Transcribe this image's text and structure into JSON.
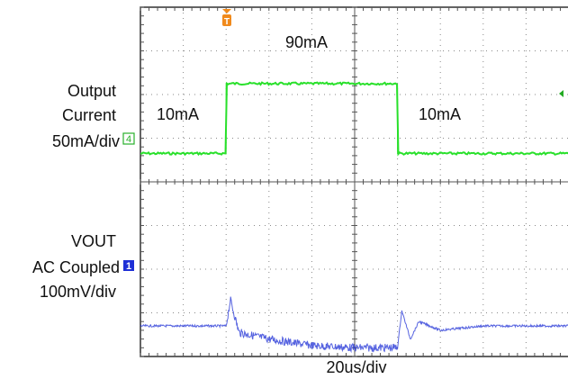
{
  "chart_data": {
    "type": "line",
    "title": "",
    "x_axis": {
      "label": "20us/div",
      "divisions": 10,
      "unit": "us",
      "per_div": 20,
      "xlim": [
        0,
        200
      ]
    },
    "y_axis": {
      "divisions": 8
    },
    "grid": true,
    "trigger_marker": {
      "label": "T",
      "color": "#f08a1c"
    },
    "right_marker_color": "#22aa22",
    "series": [
      {
        "label_lines": [
          "Output",
          "Current",
          "50mA/div"
        ],
        "channel": "4",
        "color": "#29e02b",
        "units": "mA",
        "scale_per_div": 50,
        "x": [
          0,
          40,
          40,
          120,
          120,
          200
        ],
        "y": [
          10,
          10,
          90,
          90,
          10,
          10
        ],
        "annotations": [
          "10mA",
          "90mA",
          "10mA"
        ]
      },
      {
        "label_lines": [
          "VOUT",
          "AC Coupled",
          "100mV/div"
        ],
        "channel": "1",
        "color": "#1e2fd6",
        "units": "mV",
        "scale_per_div": 100,
        "coupling": "AC Coupled",
        "x": [
          0,
          40,
          42,
          46,
          60,
          80,
          100,
          120,
          122,
          126,
          130,
          140,
          160,
          200
        ],
        "y": [
          0,
          0,
          60,
          -15,
          -30,
          -45,
          -50,
          -50,
          35,
          -30,
          10,
          -10,
          0,
          0
        ]
      }
    ]
  }
}
